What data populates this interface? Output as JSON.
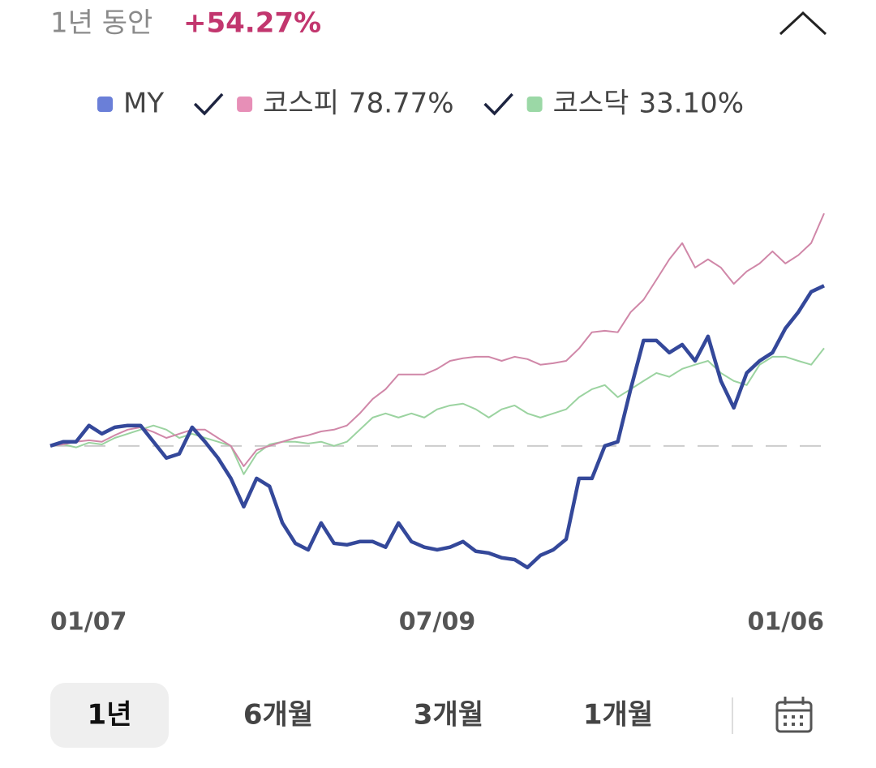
{
  "header": {
    "period": "1년 동안"
  },
  "chart_data": {
    "type": "line",
    "xlim": [
      0,
      60
    ],
    "xticks": [
      {
        "value": 0,
        "label": "01/07"
      },
      {
        "value": 30,
        "label": "07/09"
      },
      {
        "value": 60,
        "label": "01/06"
      }
    ],
    "ylim": [
      -49.5,
      101.6
    ],
    "baseline": 0,
    "series": [
      {
        "name": "MY",
        "color": "#34489a",
        "marker_color": "#6a7fd8",
        "change": 54.27,
        "change_label": "+54.27%",
        "values": [
          0,
          1.4,
          1.4,
          6.9,
          4.1,
          6.3,
          6.9,
          6.9,
          1.4,
          -4.1,
          -2.7,
          6.3,
          1.4,
          -4.1,
          -11,
          -20.6,
          -11,
          -13.7,
          -26.1,
          -33,
          -35.2,
          -26.1,
          -33,
          -33.5,
          -32.4,
          -32.4,
          -34.3,
          -26.1,
          -32.4,
          -34.3,
          -35.2,
          -34.3,
          -32.4,
          -35.7,
          -36.3,
          -37.9,
          -38.5,
          -41.2,
          -37.1,
          -35.2,
          -31.6,
          -11,
          -11,
          0,
          1.4,
          19.2,
          35.7,
          35.7,
          31.6,
          34.3,
          28.8,
          37.1,
          22,
          12.9,
          24.7,
          28.8,
          31.6,
          39.8,
          45.3,
          52.2,
          54.27
        ]
      },
      {
        "name": "코스피",
        "color": "#d087a8",
        "marker_color": "#e78fb7",
        "change": 78.77,
        "change_label": "78.77%",
        "values": [
          0,
          0.5,
          1.4,
          1.9,
          1.4,
          3.6,
          5.5,
          6.3,
          4.7,
          2.7,
          4.1,
          5.5,
          5.5,
          2.7,
          0,
          -6.9,
          -1.4,
          0,
          1.4,
          2.7,
          3.6,
          4.9,
          5.5,
          6.9,
          11,
          15.9,
          19.2,
          24.2,
          24.2,
          24.2,
          26.1,
          28.8,
          29.7,
          30.2,
          30.2,
          28.8,
          30.2,
          29.4,
          27.5,
          28,
          28.8,
          33,
          38.5,
          39,
          38.5,
          45.3,
          49.5,
          56.3,
          63.2,
          68.7,
          60.4,
          63.2,
          60.4,
          54.9,
          59.1,
          61.8,
          65.9,
          61.8,
          64.6,
          68.7,
          78.77
        ]
      },
      {
        "name": "코스닥",
        "color": "#9bd3a0",
        "marker_color": "#9bd8a6",
        "change": 33.1,
        "change_label": "33.10%",
        "values": [
          0,
          0.5,
          -0.5,
          1.1,
          0.5,
          2.7,
          4.1,
          5.5,
          6.9,
          5.5,
          2.7,
          4.1,
          2.7,
          1.4,
          0,
          -9.6,
          -2.7,
          0.5,
          1.4,
          1.4,
          0.8,
          1.4,
          0,
          1.4,
          5.5,
          9.6,
          11,
          9.6,
          11,
          9.6,
          12.4,
          13.7,
          14.3,
          12.4,
          9.6,
          12.4,
          13.7,
          11,
          9.6,
          11,
          12.4,
          16.5,
          19.2,
          20.6,
          16.5,
          19.2,
          22,
          24.7,
          23.4,
          26.1,
          27.5,
          28.8,
          24.7,
          22,
          20.6,
          27.5,
          30.2,
          30.2,
          28.8,
          27.5,
          33.1
        ]
      }
    ]
  },
  "periods": [
    "1년",
    "6개월",
    "3개월",
    "1개월"
  ]
}
